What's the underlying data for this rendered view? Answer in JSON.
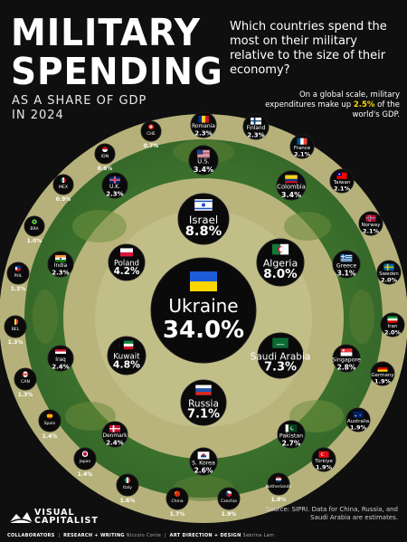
{
  "header": {
    "title_line1": "MILITARY",
    "title_line2": "SPENDING",
    "subtitle_line1": "AS A SHARE OF GDP",
    "subtitle_line2": "IN 2024",
    "question": "Which countries spend the most on their military relative to the size of their economy?",
    "note_pre": "On a global scale, military expenditures make up",
    "note_value": "2.5%",
    "note_post": "of the world's GDP."
  },
  "footer": {
    "source": "Source: SIPRI. Data for China, Russia, and Saudi Arabia are estimates.",
    "logo_line1": "VISUAL",
    "logo_line2": "CAPITALIST",
    "collaborators_label": "COLLABORATORS",
    "research_label": "RESEARCH + WRITING",
    "research_name": "Niccolo Conte",
    "art_label": "ART DIRECTION + DESIGN",
    "art_name": "Sabrina Lam"
  },
  "colors": {
    "background": "#0f0f0f",
    "ring_dark_green": "#3f7a2e",
    "ring_light_tan": "#b9b47c",
    "bubble": "#0a0a0a"
  },
  "chart_data": {
    "type": "bubble",
    "unit": "% of GDP",
    "items": [
      {
        "country": "Ukraine",
        "value": 34.0,
        "label": "34.0%",
        "flag": "ukraine"
      },
      {
        "country": "Israel",
        "value": 8.8,
        "label": "8.8%",
        "flag": "israel"
      },
      {
        "country": "Algeria",
        "value": 8.0,
        "label": "8.0%",
        "flag": "algeria"
      },
      {
        "country": "Saudi Arabia",
        "value": 7.3,
        "label": "7.3%",
        "flag": "saudi"
      },
      {
        "country": "Russia",
        "value": 7.1,
        "label": "7.1%",
        "flag": "russia"
      },
      {
        "country": "Kuwait",
        "value": 4.8,
        "label": "4.8%",
        "flag": "kuwait"
      },
      {
        "country": "Poland",
        "value": 4.2,
        "label": "4.2%",
        "flag": "poland"
      },
      {
        "country": "U.S.",
        "value": 3.4,
        "label": "3.4%",
        "flag": "us"
      },
      {
        "country": "Colombia",
        "value": 3.4,
        "label": "3.4%",
        "flag": "colombia"
      },
      {
        "country": "Greece",
        "value": 3.1,
        "label": "3.1%",
        "flag": "greece"
      },
      {
        "country": "Singapore",
        "value": 2.8,
        "label": "2.8%",
        "flag": "singapore"
      },
      {
        "country": "Pakistan",
        "value": 2.7,
        "label": "2.7%",
        "flag": "pakistan"
      },
      {
        "country": "S. Korea",
        "value": 2.6,
        "label": "2.6%",
        "flag": "skorea"
      },
      {
        "country": "Iraq",
        "value": 2.4,
        "label": "2.4%",
        "flag": "iraq"
      },
      {
        "country": "Denmark",
        "value": 2.4,
        "label": "2.4%",
        "flag": "denmark"
      },
      {
        "country": "Romania",
        "value": 2.3,
        "label": "2.3%",
        "flag": "romania"
      },
      {
        "country": "Finland",
        "value": 2.3,
        "label": "2.3%",
        "flag": "finland"
      },
      {
        "country": "U.K.",
        "value": 2.3,
        "label": "2.3%",
        "flag": "uk"
      },
      {
        "country": "India",
        "value": 2.3,
        "label": "2.3%",
        "flag": "india"
      },
      {
        "country": "France",
        "value": 2.1,
        "label": "2.1%",
        "flag": "france"
      },
      {
        "country": "Taiwan",
        "value": 2.1,
        "label": "2.1%",
        "flag": "taiwan"
      },
      {
        "country": "Norway",
        "value": 2.1,
        "label": "2.1%",
        "flag": "norway"
      },
      {
        "country": "Sweden",
        "value": 2.0,
        "label": "2.0%",
        "flag": "sweden"
      },
      {
        "country": "Iran",
        "value": 2.0,
        "label": "2.0%",
        "flag": "iran"
      },
      {
        "country": "Germany",
        "value": 1.9,
        "label": "1.9%",
        "flag": "germany"
      },
      {
        "country": "Australia",
        "value": 1.9,
        "label": "1.9%",
        "flag": "australia"
      },
      {
        "country": "Türkiye",
        "value": 1.9,
        "label": "1.9%",
        "flag": "turkey"
      },
      {
        "country": "Czechia",
        "value": 1.9,
        "label": "1.9%",
        "flag": "czechia"
      },
      {
        "country": "Netherlands",
        "value": 1.8,
        "label": "1.8%",
        "flag": "netherlands"
      },
      {
        "country": "China",
        "value": 1.7,
        "label": "1.7%",
        "flag": "china"
      },
      {
        "country": "Italy",
        "value": 1.6,
        "label": "1.6%",
        "flag": "italy"
      },
      {
        "country": "Japan",
        "value": 1.4,
        "label": "1.4%",
        "flag": "japan"
      },
      {
        "country": "Spain",
        "value": 1.4,
        "label": "1.4%",
        "flag": "spain"
      },
      {
        "country": "CAN",
        "value": 1.3,
        "label": "1.3%",
        "flag": "canada"
      },
      {
        "country": "BEL",
        "value": 1.3,
        "label": "1.3%",
        "flag": "belgium"
      },
      {
        "country": "PHL",
        "value": 1.3,
        "label": "1.3%",
        "flag": "philippines"
      },
      {
        "country": "BRA",
        "value": 1.0,
        "label": "1.0%",
        "flag": "brazil"
      },
      {
        "country": "MEX",
        "value": 0.9,
        "label": "0.9%",
        "flag": "mexico"
      },
      {
        "country": "IDN",
        "value": 0.6,
        "label": "0.6%",
        "flag": "indonesia"
      },
      {
        "country": "CHE",
        "value": 0.7,
        "label": "0.7%",
        "flag": "switzerland"
      }
    ]
  }
}
